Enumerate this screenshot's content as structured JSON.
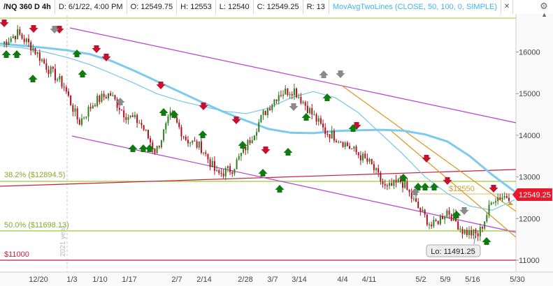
{
  "header": {
    "symbol": "/NQ 360 D 4h",
    "date": "D: 6/1/22, 4:00 PM",
    "open": "O: 12549.75",
    "high": "H: 12553",
    "low": "L: 12540",
    "close": "C: 12549.25",
    "range": "R: 13",
    "study": "MovAvgTwoLines (CLOSE, 50, 100, 0, SIMPLE)"
  },
  "colors": {
    "price_up": "#2e7d1f",
    "price_down": "#b3101e",
    "ma_fast": "#74c7ea",
    "ma_slow": "#7ccbee",
    "channel": "#b640d0",
    "fib": "#9acd32",
    "red_line": "#c81e3c",
    "orange": "#e0951e",
    "buy_arrow": "#0f7a0f",
    "sell_arrow": "#c8102e",
    "neutral_arrow": "#8a8a8a",
    "last_price_bg": "#e8192c"
  },
  "chart_data": {
    "type": "candlestick",
    "y_axis_ticks": [
      16000,
      15000,
      14000,
      13000,
      12000,
      11000
    ],
    "x_axis_labels": [
      "12/20",
      "1/3",
      "1/10",
      "1/17",
      "2/7",
      "2/14",
      "2/28",
      "3/7",
      "3/14",
      "4/4",
      "4/11",
      "5/2",
      "5/9",
      "5/16",
      "5/30"
    ],
    "year_marker": "2021 year",
    "levels": [
      {
        "label": "38.2% ($12894.5)",
        "value": 12894.5
      },
      {
        "label": "50.0% ($11698.13)",
        "value": 11698.13
      },
      {
        "label": "$11000",
        "value": 11000
      },
      {
        "label": "$12550",
        "value": 12550
      }
    ],
    "last_price": "12549.25",
    "low_label": "Lo: 11491.25",
    "ma50": [
      16150,
      16100,
      16000,
      15870,
      15700,
      15480,
      15250,
      15000,
      14830,
      14700,
      14580,
      14520,
      14650,
      14900,
      15050,
      14900,
      14550,
      14050,
      13550,
      13000,
      12600,
      12300,
      12200,
      12450
    ],
    "ma100": [
      16200,
      16150,
      16100,
      16040,
      15950,
      15780,
      15550,
      15300,
      15050,
      14800,
      14560,
      14350,
      14150,
      14060,
      14050,
      14100,
      14120,
      14130,
      14110,
      14020,
      13850,
      13500,
      13050,
      12650
    ],
    "price_path": [
      16200,
      16450,
      16100,
      15600,
      15200,
      14300,
      14800,
      15000,
      14500,
      14300,
      13600,
      14500,
      13900,
      13700,
      13050,
      13200,
      13800,
      14500,
      15000,
      15100,
      14600,
      14100,
      13900,
      13600,
      13300,
      12700,
      12900,
      12300,
      11800,
      12200,
      11700,
      11600,
      12500,
      12550
    ]
  }
}
